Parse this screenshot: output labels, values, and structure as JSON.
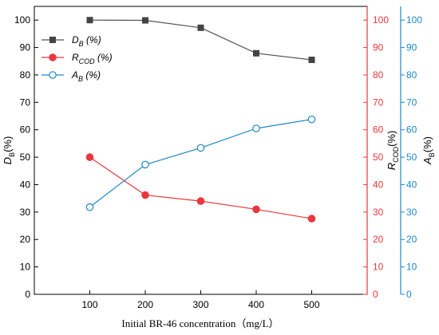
{
  "chart_data": {
    "type": "line",
    "x": [
      100,
      200,
      300,
      400,
      500
    ],
    "xlabel": "Initial BR-46 concentration（mg/L）",
    "xlim": [
      0,
      600
    ],
    "xticks": [
      100,
      200,
      300,
      400,
      500
    ],
    "grid": false,
    "legend_position": "top-left",
    "axes": {
      "left": {
        "label_main": "D",
        "label_sub": "B",
        "label_suffix": "(%)",
        "range": [
          0,
          105
        ],
        "ticks": [
          0,
          10,
          20,
          30,
          40,
          50,
          60,
          70,
          80,
          90,
          100
        ],
        "color": "#000000"
      },
      "right1": {
        "label_main": "R",
        "label_sub": "COD",
        "label_suffix": "(%)",
        "range": [
          0,
          105
        ],
        "ticks": [
          0,
          10,
          20,
          30,
          40,
          50,
          60,
          70,
          80,
          90,
          100
        ],
        "color": "#e8383d"
      },
      "right2": {
        "label_main": "A",
        "label_sub": "B",
        "label_suffix": "(%)",
        "range": [
          0,
          105
        ],
        "ticks": [
          0,
          10,
          20,
          30,
          40,
          50,
          60,
          70,
          80,
          90,
          100
        ],
        "color": "#1e88c8"
      }
    },
    "series": [
      {
        "legend_main": "D",
        "legend_sub": "B",
        "legend_suffix": " (%)",
        "axis": "left",
        "marker": "square",
        "filled": true,
        "color": "#555555",
        "marker_color": "#444444",
        "values": [
          100,
          99.9,
          97.2,
          87.9,
          85.5
        ]
      },
      {
        "legend_main": "R",
        "legend_sub": "COD",
        "legend_suffix": " (%)",
        "axis": "right1",
        "marker": "circle",
        "filled": true,
        "color": "#e8383d",
        "marker_color": "#e8383d",
        "values": [
          50,
          36.2,
          34,
          31,
          27.6
        ]
      },
      {
        "legend_main": "A",
        "legend_sub": "B",
        "legend_suffix": " (%)",
        "axis": "right2",
        "marker": "circle",
        "filled": false,
        "color": "#1e88c8",
        "marker_color": "#1e88c8",
        "values": [
          31.8,
          47.3,
          53.4,
          60.5,
          63.8
        ]
      }
    ]
  }
}
